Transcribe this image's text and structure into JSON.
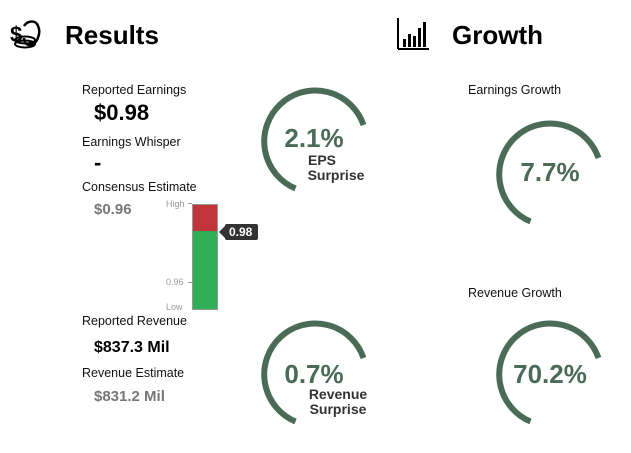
{
  "results": {
    "title": "Results",
    "icon": "money-bag-icon",
    "reported_earnings_label": "Reported Earnings",
    "reported_earnings_value": "$0.98",
    "earnings_whisper_label": "Earnings Whisper",
    "earnings_whisper_value": "-",
    "consensus_label": "Consensus Estimate",
    "consensus_value": "$0.96",
    "reported_revenue_label": "Reported Revenue",
    "reported_revenue_value": "$837.3 Mil",
    "revenue_estimate_label": "Revenue Estimate",
    "revenue_estimate_value": "$831.2 Mil"
  },
  "range_bar": {
    "high_label": "High",
    "low_label": "Low",
    "mid_label": "0.96",
    "pointer_label": "0.98",
    "colors": {
      "above": "#c0343a",
      "below": "#2fae55"
    }
  },
  "eps_gauge": {
    "value": "2.1%",
    "line1": "EPS",
    "line2": "Surprise"
  },
  "revenue_gauge": {
    "value": "0.7%",
    "line1": "Revenue",
    "line2": "Surprise"
  },
  "growth": {
    "title": "Growth",
    "icon": "bar-chart-icon",
    "earnings_growth_label": "Earnings Growth",
    "earnings_growth_value": "7.7%",
    "revenue_growth_label": "Revenue Growth",
    "revenue_growth_value": "70.2%"
  },
  "gauge_color": "#4a6b55"
}
